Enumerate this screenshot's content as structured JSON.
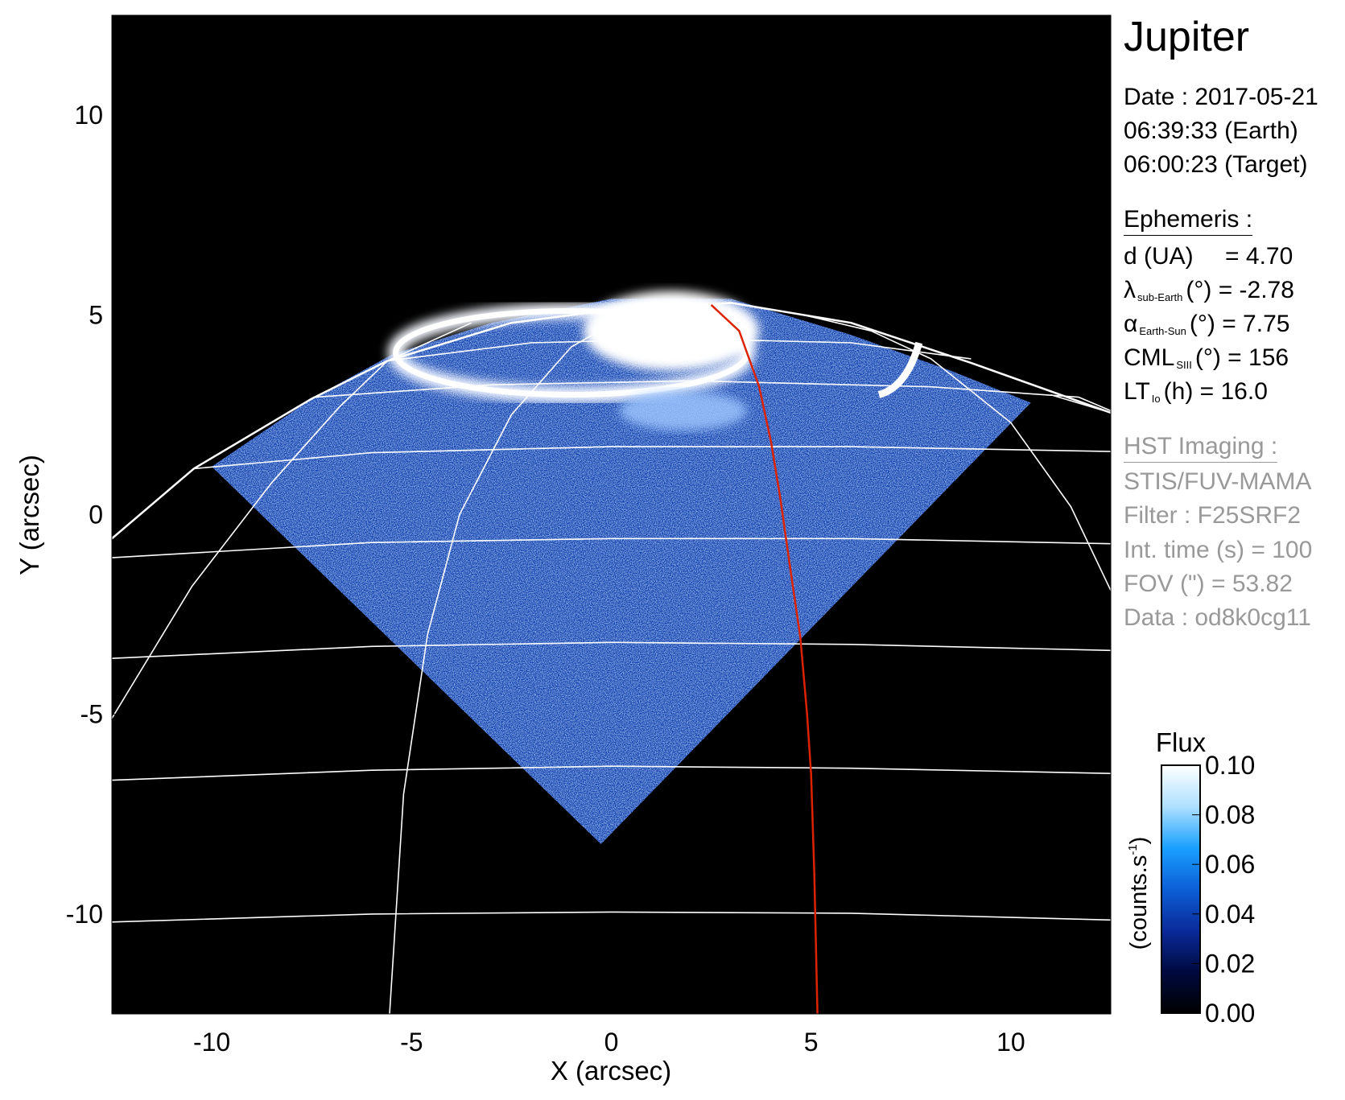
{
  "chart_data": {
    "type": "heatmap",
    "title": "Jupiter",
    "xlabel": "X (arcsec)",
    "ylabel": "Y (arcsec)",
    "xlim": [
      -12.5,
      12.5
    ],
    "ylim": [
      -12.5,
      12.5
    ],
    "xticks": [
      "-10",
      "-5",
      "0",
      "5",
      "10"
    ],
    "yticks": [
      "10",
      "5",
      "0",
      "-5",
      "-10"
    ],
    "xtick_values": [
      -10,
      -5,
      0,
      5,
      10
    ],
    "ytick_values": [
      10,
      5,
      0,
      -5,
      -10
    ],
    "background_color": "#000000",
    "grid_color": "#ffffff",
    "footprint_color": "#dd2200",
    "colorbar": {
      "title": "Flux",
      "label": "(counts.s",
      "label_sup": "-1",
      "label_end": ")",
      "range": [
        0.0,
        0.1
      ],
      "ticks": [
        "0.10",
        "0.08",
        "0.06",
        "0.04",
        "0.02",
        "0.00"
      ],
      "tick_values": [
        0.1,
        0.08,
        0.06,
        0.04,
        0.02,
        0.0
      ],
      "colors": [
        "#000000",
        "#000a40",
        "#0a2a9a",
        "#0c5fd6",
        "#1aa0ff",
        "#aee0ff",
        "#ffffff"
      ]
    },
    "data_region": [
      [
        -10.0,
        1.2
      ],
      [
        -7.5,
        2.9
      ],
      [
        -5.5,
        4.0
      ],
      [
        -3,
        4.8
      ],
      [
        0,
        5.4
      ],
      [
        3,
        5.4
      ],
      [
        6,
        4.5
      ],
      [
        8.5,
        3.6
      ],
      [
        10.5,
        2.8
      ],
      [
        -0.26,
        -8.25
      ]
    ],
    "grid_lines": [
      [
        [
          -12.5,
          -0.6
        ],
        [
          -10.45,
          1.15
        ],
        [
          -7.5,
          2.9
        ],
        [
          -5.6,
          3.85
        ],
        [
          -2.5,
          4.8
        ],
        [
          -0.2,
          5.1
        ],
        [
          3,
          5.3
        ],
        [
          6,
          4.8
        ],
        [
          9,
          3.8
        ],
        [
          12.5,
          2.55
        ]
      ],
      [
        [
          -12.5,
          -10.2
        ],
        [
          -6,
          -10.0
        ],
        [
          0,
          -9.95
        ],
        [
          6,
          -9.98
        ],
        [
          12.5,
          -10.15
        ]
      ],
      [
        [
          -12.5,
          -6.65
        ],
        [
          -6,
          -6.4
        ],
        [
          0,
          -6.3
        ],
        [
          6,
          -6.35
        ],
        [
          12.5,
          -6.48
        ]
      ],
      [
        [
          -12.5,
          -3.6
        ],
        [
          -6,
          -3.3
        ],
        [
          0,
          -3.2
        ],
        [
          6,
          -3.25
        ],
        [
          12.5,
          -3.4
        ]
      ],
      [
        [
          -12.5,
          -1.08
        ],
        [
          -6,
          -0.7
        ],
        [
          0,
          -0.6
        ],
        [
          6,
          -0.6
        ],
        [
          12.5,
          -0.73
        ]
      ],
      [
        [
          -10.45,
          1.15
        ],
        [
          -6,
          1.55
        ],
        [
          0,
          1.7
        ],
        [
          6,
          1.7
        ],
        [
          12.5,
          1.58
        ]
      ],
      [
        [
          -7.4,
          2.94
        ],
        [
          -3,
          3.25
        ],
        [
          2,
          3.35
        ],
        [
          8,
          3.2
        ],
        [
          11.7,
          2.94
        ],
        [
          12.5,
          2.6
        ]
      ],
      [
        [
          -5.6,
          3.85
        ],
        [
          -2,
          4.3
        ],
        [
          2,
          4.4
        ],
        [
          6,
          4.3
        ],
        [
          9,
          3.9
        ]
      ],
      [
        [
          -12.5,
          -5.1
        ],
        [
          -10.5,
          -1.8
        ],
        [
          -8.5,
          0.8
        ],
        [
          -6.8,
          2.7
        ],
        [
          -5.6,
          3.85
        ],
        [
          -3.5,
          4.8
        ]
      ],
      [
        [
          -5.55,
          -12.5
        ],
        [
          -5.2,
          -7
        ],
        [
          -4.6,
          -3
        ],
        [
          -3.8,
          0
        ],
        [
          -2.5,
          2.5
        ],
        [
          -1,
          4.2
        ],
        [
          0.24,
          4.9
        ]
      ],
      [
        [
          12.5,
          -1.9
        ],
        [
          11.5,
          0.2
        ],
        [
          10,
          2.3
        ],
        [
          8,
          3.9
        ],
        [
          6.5,
          4.6
        ],
        [
          4.8,
          5.0
        ]
      ],
      [
        [
          12.5,
          2.55
        ],
        [
          11,
          3.0
        ]
      ]
    ],
    "footprint_line": [
      [
        2.5,
        5.25
      ],
      [
        3.2,
        4.6
      ],
      [
        3.7,
        3.2
      ],
      [
        4.0,
        1.8
      ],
      [
        4.23,
        0.4
      ],
      [
        4.5,
        -1.5
      ],
      [
        4.73,
        -3.07
      ],
      [
        4.9,
        -5
      ],
      [
        5.0,
        -6.5
      ],
      [
        5.08,
        -9
      ],
      [
        5.16,
        -12.5
      ]
    ]
  },
  "panel": {
    "title": "Jupiter",
    "date": "Date : 2017-05-21",
    "time_earth": "06:39:33 (Earth)",
    "time_target": "06:00:23 (Target)",
    "ephemeris_header": "Ephemeris :",
    "ephemeris": [
      {
        "sym": "d (UA)",
        "sub": "",
        "rest": "    = 4.70"
      },
      {
        "sym": "λ",
        "sub": "sub-Earth",
        "rest": "(°) = -2.78"
      },
      {
        "sym": "α",
        "sub": "Earth-Sun",
        "rest": "(°) = 7.75"
      },
      {
        "sym": "CML",
        "sub": "SIII",
        "rest": "(°) = 156"
      },
      {
        "sym": "LT",
        "sub": "Io",
        "rest": "(h) = 16.0"
      }
    ],
    "hst_header": "HST Imaging :",
    "hst": [
      "STIS/FUV-MAMA",
      "Filter : F25SRF2",
      "Int. time (s) = 100",
      "FOV (\") = 53.82",
      "Data : od8k0cg11"
    ]
  }
}
